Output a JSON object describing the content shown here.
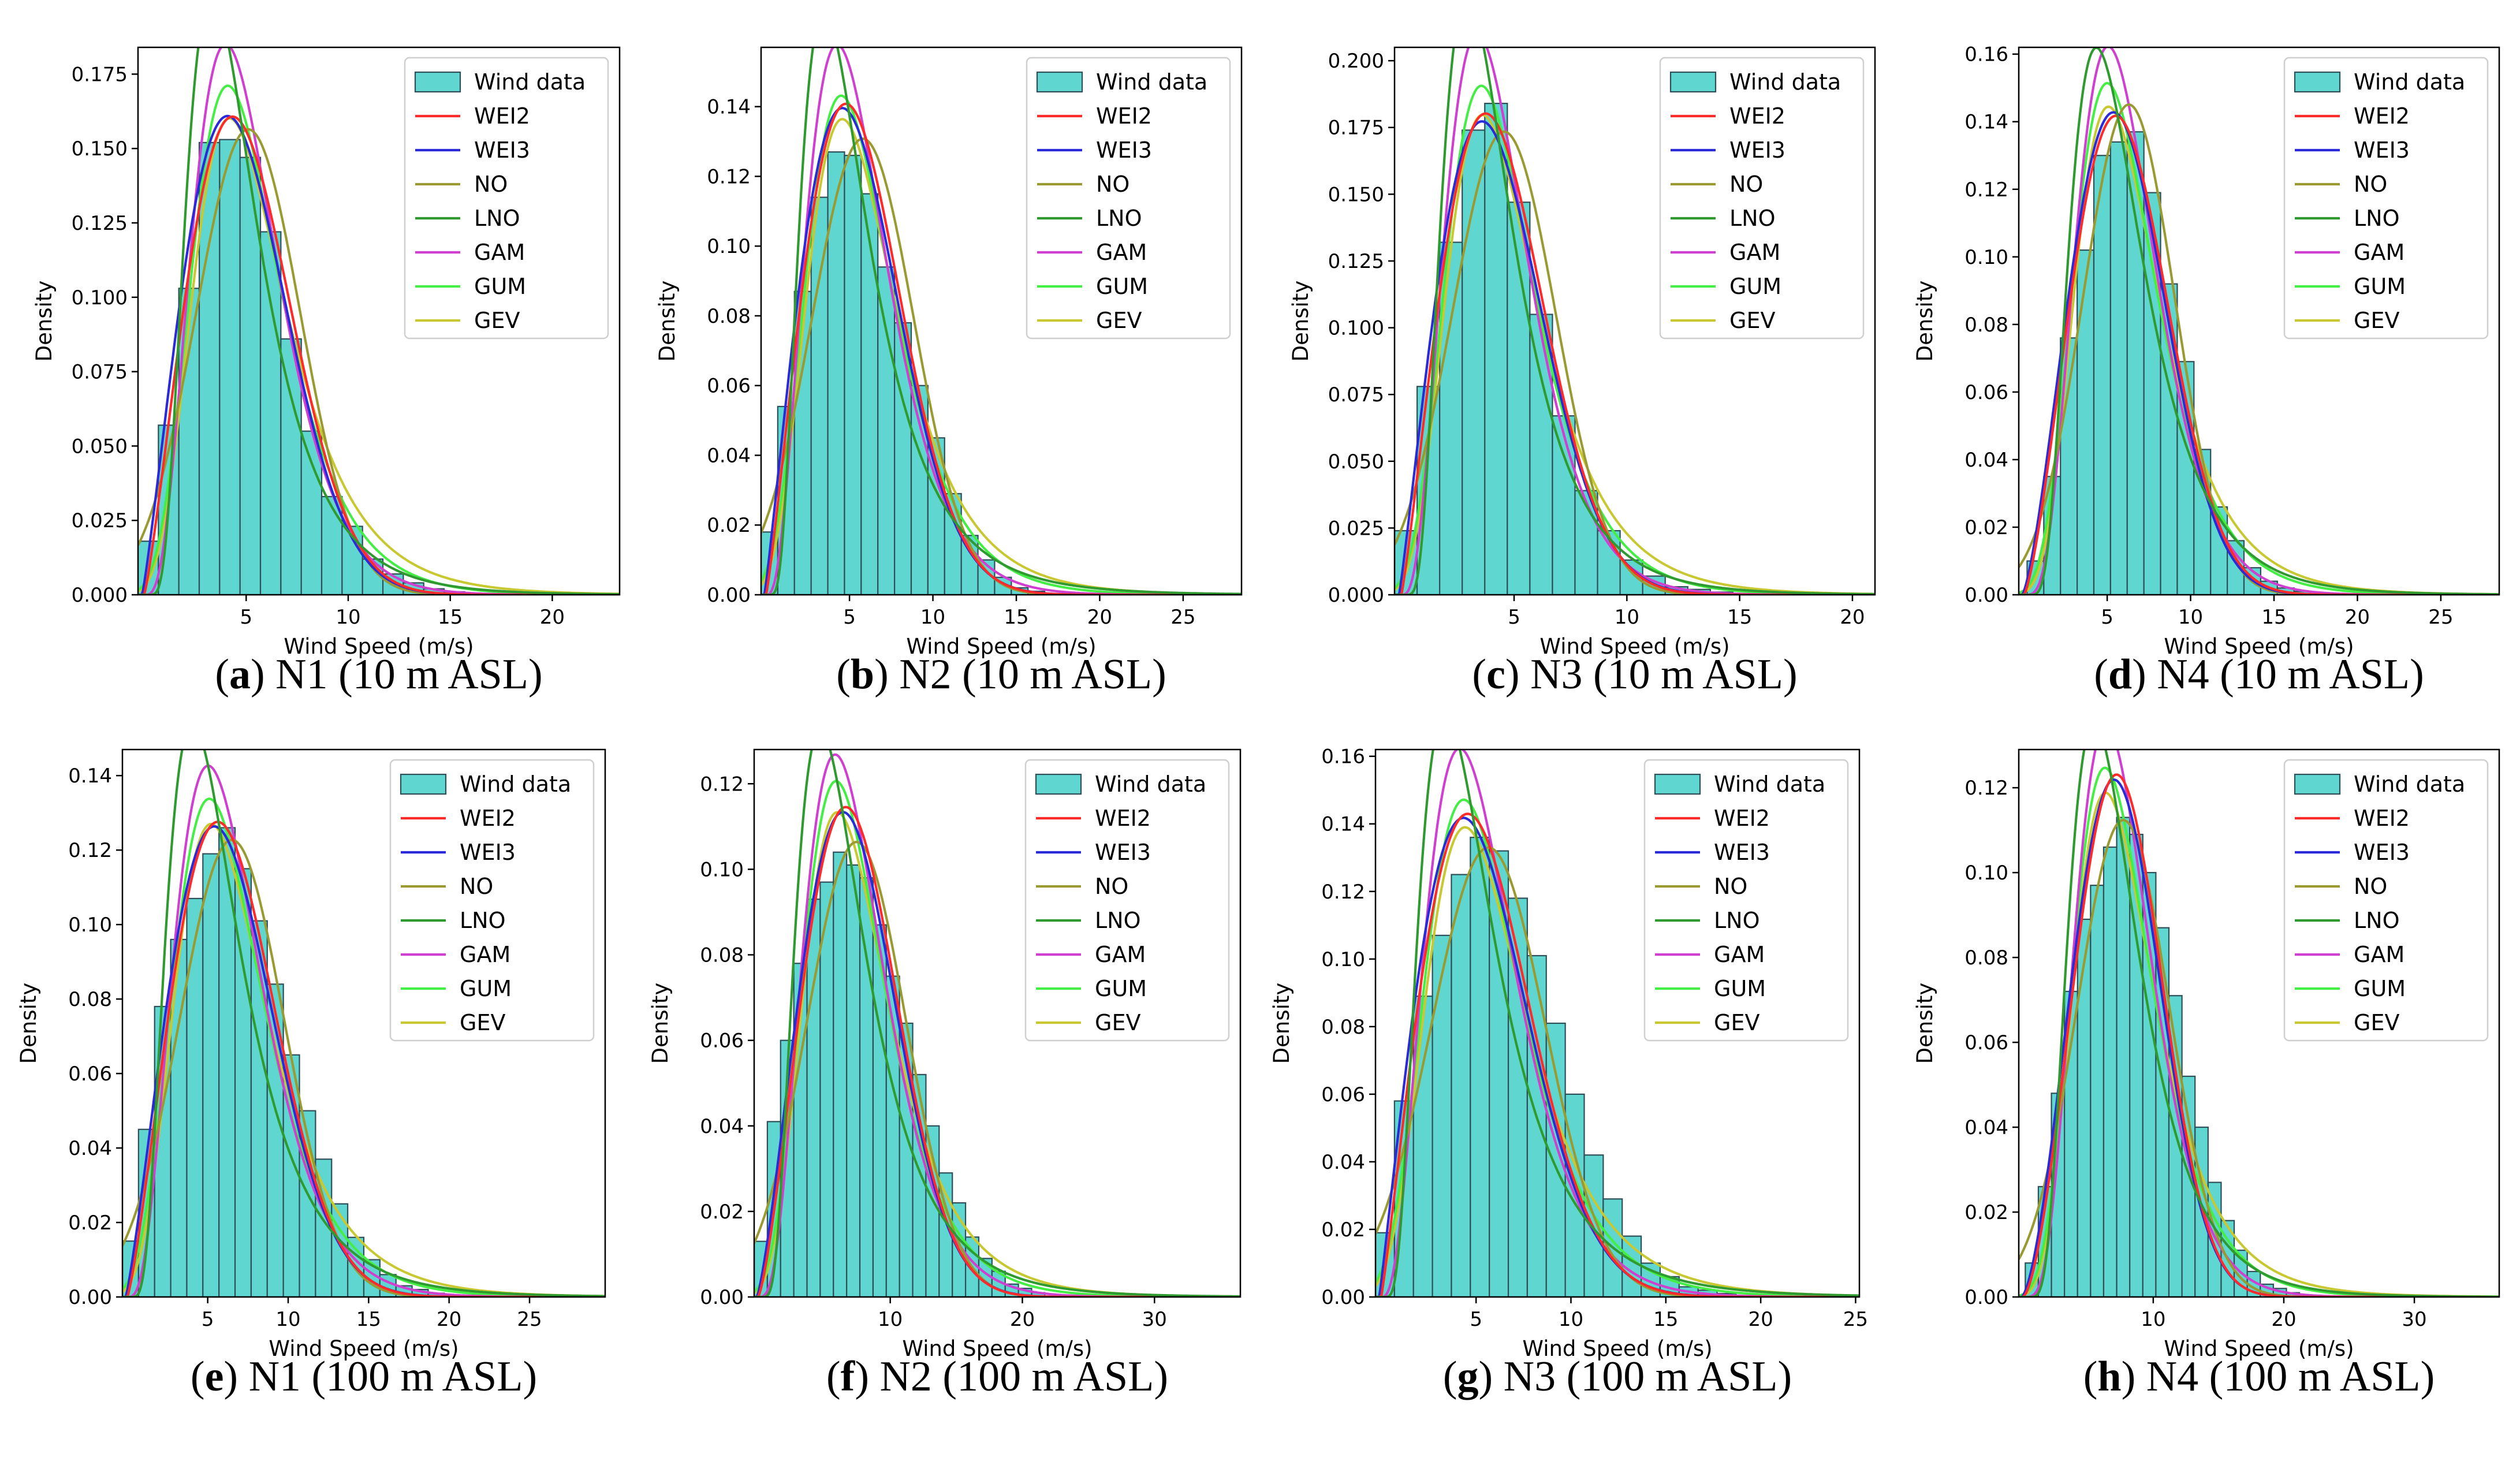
{
  "figure": {
    "legend_labels": [
      "Wind data",
      "WEI2",
      "WEI3",
      "NO",
      "LNO",
      "GAM",
      "GUM",
      "GEV"
    ],
    "colors": {
      "bars": "#5fd6cf",
      "bar_edge": "#2e4e58",
      "WEI2": "#ff2a2a",
      "WEI3": "#2a2ad8",
      "NO": "#9a9a33",
      "LNO": "#2f9a2f",
      "GAM": "#d040d0",
      "GUM": "#44ee44",
      "GEV": "#c8c832"
    }
  },
  "chart_data": [
    {
      "type": "bar",
      "panel_letter": "a",
      "caption": " N1 (10 m ASL)",
      "xlabel": "Wind Speed (m/s)",
      "ylabel": "Density",
      "xlim": [
        -0.3,
        23.3
      ],
      "ylim": [
        0,
        0.184
      ],
      "xticks": [
        5,
        10,
        15,
        20
      ],
      "yticks": [
        0.0,
        0.025,
        0.05,
        0.075,
        0.1,
        0.125,
        0.15,
        0.175
      ],
      "ytick_labels": [
        "0.000",
        "0.025",
        "0.050",
        "0.075",
        "0.100",
        "0.125",
        "0.150",
        "0.175"
      ],
      "bin_width": 1.0,
      "bin_start": -0.3,
      "values": [
        0.018,
        0.057,
        0.103,
        0.152,
        0.153,
        0.147,
        0.122,
        0.086,
        0.055,
        0.033,
        0.023,
        0.012,
        0.007,
        0.004,
        0.002,
        0.001
      ],
      "fits": {
        "WEI2": {
          "dist": "weibull",
          "params": [
            2.2,
            5.7
          ]
        },
        "WEI3": {
          "dist": "weibull",
          "params": [
            2.15,
            5.6,
            -0.1
          ]
        },
        "NO": {
          "dist": "normal",
          "params": [
            5.1,
            2.55
          ]
        },
        "LNO": {
          "dist": "lognormal",
          "params": [
            1.47,
            0.52
          ]
        },
        "GAM": {
          "dist": "gamma",
          "params": [
            4.6,
            1.11
          ]
        },
        "GUM": {
          "dist": "gumbel",
          "params": [
            4.1,
            2.15
          ]
        },
        "GEV": {
          "dist": "gev",
          "params": [
            4.3,
            2.3,
            0.05
          ]
        }
      }
    },
    {
      "type": "bar",
      "panel_letter": "b",
      "caption": " N2 (10 m ASL)",
      "xlabel": "Wind Speed (m/s)",
      "ylabel": "Density",
      "xlim": [
        -0.3,
        28.5
      ],
      "ylim": [
        0,
        0.157
      ],
      "xticks": [
        5,
        10,
        15,
        20,
        25
      ],
      "yticks": [
        0.0,
        0.02,
        0.04,
        0.06,
        0.08,
        0.1,
        0.12,
        0.14
      ],
      "ytick_labels": [
        "0.00",
        "0.02",
        "0.04",
        "0.06",
        "0.08",
        "0.10",
        "0.12",
        "0.14"
      ],
      "bin_width": 1.0,
      "bin_start": -0.3,
      "values": [
        0.018,
        0.054,
        0.087,
        0.114,
        0.127,
        0.126,
        0.115,
        0.094,
        0.078,
        0.06,
        0.045,
        0.029,
        0.017,
        0.01,
        0.005,
        0.002,
        0.001
      ],
      "fits": {
        "WEI2": {
          "dist": "weibull",
          "params": [
            2.15,
            6.4
          ]
        },
        "WEI3": {
          "dist": "weibull",
          "params": [
            2.1,
            6.35,
            -0.1
          ]
        },
        "NO": {
          "dist": "normal",
          "params": [
            5.8,
            3.05
          ]
        },
        "LNO": {
          "dist": "lognormal",
          "params": [
            1.58,
            0.58
          ]
        },
        "GAM": {
          "dist": "gamma",
          "params": [
            4.0,
            1.42
          ]
        },
        "GUM": {
          "dist": "gumbel",
          "params": [
            4.5,
            2.57
          ]
        },
        "GEV": {
          "dist": "gev",
          "params": [
            4.7,
            2.7,
            0.05
          ]
        }
      }
    },
    {
      "type": "bar",
      "panel_letter": "c",
      "caption": " N3 (10 m ASL)",
      "xlabel": "Wind Speed (m/s)",
      "ylabel": "Density",
      "xlim": [
        -0.3,
        21.0
      ],
      "ylim": [
        0,
        0.205
      ],
      "xticks": [
        5,
        10,
        15,
        20
      ],
      "yticks": [
        0.0,
        0.025,
        0.05,
        0.075,
        0.1,
        0.125,
        0.15,
        0.175,
        0.2
      ],
      "ytick_labels": [
        "0.000",
        "0.025",
        "0.050",
        "0.075",
        "0.100",
        "0.125",
        "0.150",
        "0.175",
        "0.200"
      ],
      "bin_width": 1.0,
      "bin_start": -0.3,
      "values": [
        0.024,
        0.078,
        0.132,
        0.174,
        0.184,
        0.147,
        0.105,
        0.067,
        0.039,
        0.024,
        0.013,
        0.007,
        0.003,
        0.002,
        0.001
      ],
      "fits": {
        "WEI2": {
          "dist": "weibull",
          "params": [
            2.15,
            5.0
          ]
        },
        "WEI3": {
          "dist": "weibull",
          "params": [
            2.1,
            5.0,
            -0.1
          ]
        },
        "NO": {
          "dist": "normal",
          "params": [
            4.55,
            2.3
          ]
        },
        "LNO": {
          "dist": "lognormal",
          "params": [
            1.35,
            0.53
          ]
        },
        "GAM": {
          "dist": "gamma",
          "params": [
            4.3,
            1.02
          ]
        },
        "GUM": {
          "dist": "gumbel",
          "params": [
            3.55,
            1.93
          ]
        },
        "GEV": {
          "dist": "gev",
          "params": [
            3.7,
            2.05,
            0.05
          ]
        }
      }
    },
    {
      "type": "bar",
      "panel_letter": "d",
      "caption": " N4 (10 m ASL)",
      "xlabel": "Wind Speed (m/s)",
      "ylabel": "Density",
      "xlim": [
        -0.3,
        28.5
      ],
      "ylim": [
        0,
        0.162
      ],
      "xticks": [
        5,
        10,
        15,
        20,
        25
      ],
      "yticks": [
        0.0,
        0.02,
        0.04,
        0.06,
        0.08,
        0.1,
        0.12,
        0.14,
        0.16
      ],
      "ytick_labels": [
        "0.00",
        "0.02",
        "0.04",
        "0.06",
        "0.08",
        "0.10",
        "0.12",
        "0.14",
        "0.16"
      ],
      "bin_width": 1.0,
      "bin_start": 0.2,
      "values": [
        0.01,
        0.035,
        0.076,
        0.102,
        0.13,
        0.134,
        0.137,
        0.119,
        0.092,
        0.069,
        0.043,
        0.026,
        0.016,
        0.008,
        0.004,
        0.002,
        0.001
      ],
      "fits": {
        "WEI2": {
          "dist": "weibull",
          "params": [
            2.4,
            6.9
          ]
        },
        "WEI3": {
          "dist": "weibull",
          "params": [
            2.4,
            6.85,
            -0.1
          ]
        },
        "NO": {
          "dist": "normal",
          "params": [
            6.3,
            2.75
          ]
        },
        "LNO": {
          "dist": "lognormal",
          "params": [
            1.72,
            0.5
          ]
        },
        "GAM": {
          "dist": "gamma",
          "params": [
            5.4,
            1.15
          ]
        },
        "GUM": {
          "dist": "gumbel",
          "params": [
            5.0,
            2.43
          ]
        },
        "GEV": {
          "dist": "gev",
          "params": [
            5.2,
            2.55,
            0.05
          ]
        }
      }
    },
    {
      "type": "bar",
      "panel_letter": "e",
      "caption": " N1 (100 m ASL)",
      "xlabel": "Wind Speed (m/s)",
      "ylabel": "Density",
      "xlim": [
        -0.3,
        29.7
      ],
      "ylim": [
        0,
        0.147
      ],
      "xticks": [
        5,
        10,
        15,
        20,
        25
      ],
      "yticks": [
        0.0,
        0.02,
        0.04,
        0.06,
        0.08,
        0.1,
        0.12,
        0.14
      ],
      "ytick_labels": [
        "0.00",
        "0.02",
        "0.04",
        "0.06",
        "0.08",
        "0.10",
        "0.12",
        "0.14"
      ],
      "bin_width": 1.0,
      "bin_start": -0.3,
      "values": [
        0.015,
        0.045,
        0.078,
        0.096,
        0.107,
        0.119,
        0.126,
        0.115,
        0.101,
        0.084,
        0.065,
        0.05,
        0.037,
        0.025,
        0.016,
        0.01,
        0.006,
        0.003,
        0.002,
        0.001
      ],
      "fits": {
        "WEI2": {
          "dist": "weibull",
          "params": [
            2.25,
            7.3
          ]
        },
        "WEI3": {
          "dist": "weibull",
          "params": [
            2.2,
            7.25,
            -0.1
          ]
        },
        "NO": {
          "dist": "normal",
          "params": [
            6.5,
            3.25
          ]
        },
        "LNO": {
          "dist": "lognormal",
          "params": [
            1.7,
            0.55
          ]
        },
        "GAM": {
          "dist": "gamma",
          "params": [
            4.4,
            1.48
          ]
        },
        "GUM": {
          "dist": "gumbel",
          "params": [
            5.1,
            2.75
          ]
        },
        "GEV": {
          "dist": "gev",
          "params": [
            5.35,
            2.9,
            0.05
          ]
        }
      }
    },
    {
      "type": "bar",
      "panel_letter": "f",
      "caption": " N2 (100 m ASL)",
      "xlabel": "Wind Speed (m/s)",
      "ylabel": "Density",
      "xlim": [
        -0.3,
        36.5
      ],
      "ylim": [
        0,
        0.128
      ],
      "xticks": [
        10,
        20,
        30
      ],
      "yticks": [
        0.0,
        0.02,
        0.04,
        0.06,
        0.08,
        0.1,
        0.12
      ],
      "ytick_labels": [
        "0.00",
        "0.02",
        "0.04",
        "0.06",
        "0.08",
        "0.10",
        "0.12"
      ],
      "bin_width": 1.0,
      "bin_start": -0.3,
      "values": [
        0.013,
        0.041,
        0.06,
        0.078,
        0.093,
        0.097,
        0.104,
        0.101,
        0.098,
        0.087,
        0.075,
        0.064,
        0.052,
        0.04,
        0.029,
        0.022,
        0.014,
        0.009,
        0.006,
        0.003,
        0.002,
        0.001
      ],
      "fits": {
        "WEI2": {
          "dist": "weibull",
          "params": [
            2.35,
            8.4
          ]
        },
        "WEI3": {
          "dist": "weibull",
          "params": [
            2.3,
            8.35,
            -0.1
          ]
        },
        "NO": {
          "dist": "normal",
          "params": [
            7.45,
            3.75
          ]
        },
        "LNO": {
          "dist": "lognormal",
          "params": [
            1.85,
            0.55
          ]
        },
        "GAM": {
          "dist": "gamma",
          "params": [
            4.6,
            1.62
          ]
        },
        "GUM": {
          "dist": "gumbel",
          "params": [
            5.9,
            3.05
          ]
        },
        "GEV": {
          "dist": "gev",
          "params": [
            6.15,
            3.25,
            0.05
          ]
        }
      }
    },
    {
      "type": "bar",
      "panel_letter": "g",
      "caption": " N3 (100 m ASL)",
      "xlabel": "Wind Speed (m/s)",
      "ylabel": "Density",
      "xlim": [
        -0.3,
        25.2
      ],
      "ylim": [
        0,
        0.162
      ],
      "xticks": [
        5,
        10,
        15,
        20,
        25
      ],
      "yticks": [
        0.0,
        0.02,
        0.04,
        0.06,
        0.08,
        0.1,
        0.12,
        0.14,
        0.16
      ],
      "ytick_labels": [
        "0.00",
        "0.02",
        "0.04",
        "0.06",
        "0.08",
        "0.10",
        "0.12",
        "0.14",
        "0.16"
      ],
      "bin_width": 1.0,
      "bin_start": -0.3,
      "values": [
        0.019,
        0.058,
        0.089,
        0.107,
        0.125,
        0.136,
        0.132,
        0.118,
        0.101,
        0.081,
        0.06,
        0.042,
        0.029,
        0.018,
        0.01,
        0.006,
        0.003,
        0.002,
        0.001
      ],
      "fits": {
        "WEI2": {
          "dist": "weibull",
          "params": [
            2.1,
            6.2
          ]
        },
        "WEI3": {
          "dist": "weibull",
          "params": [
            2.05,
            6.15,
            -0.1
          ]
        },
        "NO": {
          "dist": "normal",
          "params": [
            5.65,
            3.0
          ]
        },
        "LNO": {
          "dist": "lognormal",
          "params": [
            1.55,
            0.58
          ]
        },
        "GAM": {
          "dist": "gamma",
          "params": [
            4.0,
            1.38
          ]
        },
        "GUM": {
          "dist": "gumbel",
          "params": [
            4.35,
            2.5
          ]
        },
        "GEV": {
          "dist": "gev",
          "params": [
            4.55,
            2.65,
            0.05
          ]
        }
      }
    },
    {
      "type": "bar",
      "panel_letter": "h",
      "caption": " N4 (100 m ASL)",
      "xlabel": "Wind Speed (m/s)",
      "ylabel": "Density",
      "xlim": [
        -0.3,
        36.5
      ],
      "ylim": [
        0,
        0.129
      ],
      "xticks": [
        10,
        20,
        30
      ],
      "yticks": [
        0.0,
        0.02,
        0.04,
        0.06,
        0.08,
        0.1,
        0.12
      ],
      "ytick_labels": [
        "0.00",
        "0.02",
        "0.04",
        "0.06",
        "0.08",
        "0.10",
        "0.12"
      ],
      "bin_width": 1.0,
      "bin_start": 0.2,
      "values": [
        0.008,
        0.026,
        0.048,
        0.072,
        0.089,
        0.097,
        0.106,
        0.113,
        0.109,
        0.1,
        0.087,
        0.071,
        0.052,
        0.04,
        0.027,
        0.018,
        0.011,
        0.006,
        0.003,
        0.002,
        0.001
      ],
      "fits": {
        "WEI2": {
          "dist": "weibull",
          "params": [
            2.65,
            8.6
          ]
        },
        "WEI3": {
          "dist": "weibull",
          "params": [
            2.6,
            8.55,
            -0.1
          ]
        },
        "NO": {
          "dist": "normal",
          "params": [
            7.7,
            3.55
          ]
        },
        "LNO": {
          "dist": "lognormal",
          "params": [
            1.93,
            0.48
          ]
        },
        "GAM": {
          "dist": "gamma",
          "params": [
            5.8,
            1.33
          ]
        },
        "GUM": {
          "dist": "gumbel",
          "params": [
            6.3,
            2.95
          ]
        },
        "GEV": {
          "dist": "gev",
          "params": [
            6.5,
            3.1,
            0.05
          ]
        }
      }
    }
  ]
}
